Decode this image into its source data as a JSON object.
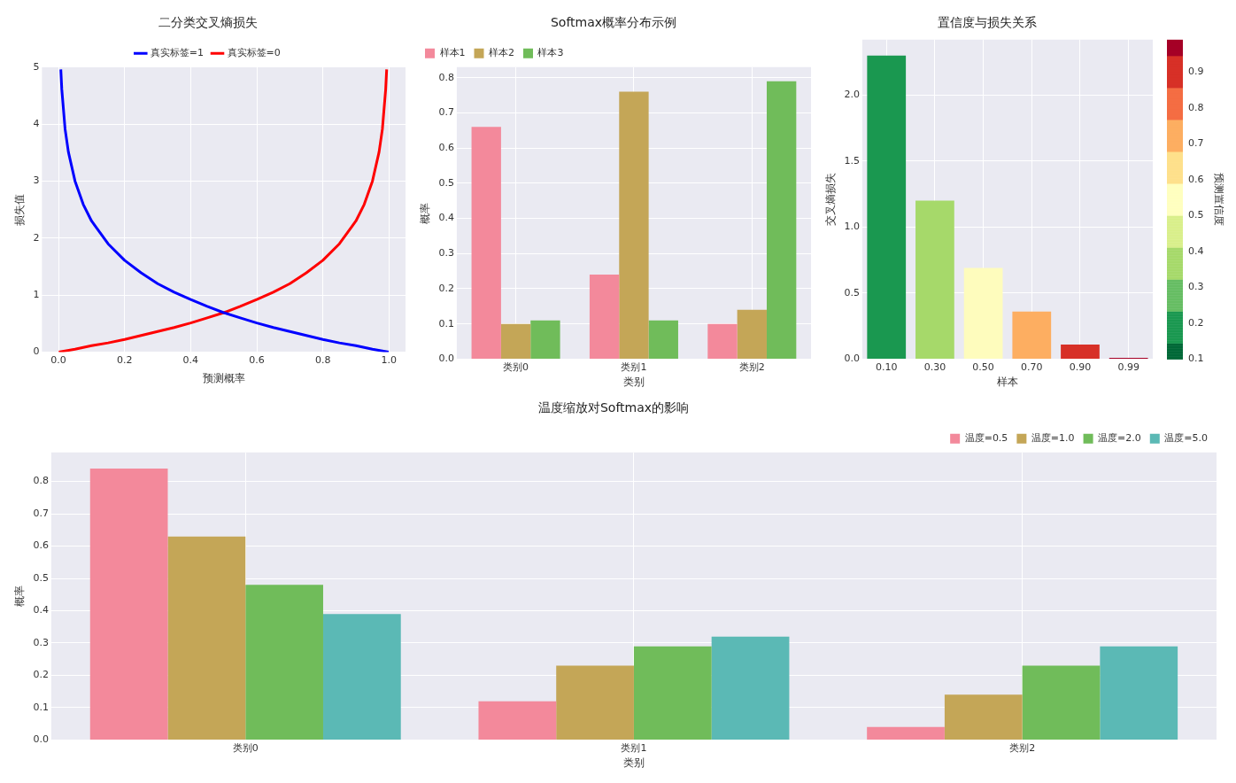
{
  "chart_data": [
    {
      "type": "line",
      "title": "二分类交叉熵损失",
      "xlabel": "预测概率",
      "ylabel": "损失值",
      "xlim": [
        -0.05,
        1.05
      ],
      "xticks": [
        {
          "value": 0,
          "label": "0.0"
        },
        {
          "value": 0.2,
          "label": "0.2"
        },
        {
          "value": 0.4,
          "label": "0.4"
        },
        {
          "value": 0.6,
          "label": "0.6"
        },
        {
          "value": 0.8,
          "label": "0.8"
        },
        {
          "value": 1,
          "label": "1.0"
        }
      ],
      "ylim": [
        0,
        5
      ],
      "yticks": [
        0,
        1,
        2,
        3,
        4,
        5
      ],
      "grid": true,
      "legend": "top",
      "series": [
        {
          "name": "真实标签=1",
          "color": "#0000ff",
          "x": [
            0.007,
            0.01,
            0.02,
            0.03,
            0.05,
            0.075,
            0.1,
            0.15,
            0.2,
            0.25,
            0.3,
            0.35,
            0.4,
            0.45,
            0.5,
            0.55,
            0.6,
            0.65,
            0.7,
            0.75,
            0.8,
            0.85,
            0.9,
            0.95,
            0.999
          ],
          "values": [
            4.96,
            4.61,
            3.91,
            3.51,
            3.0,
            2.59,
            2.3,
            1.9,
            1.61,
            1.39,
            1.2,
            1.05,
            0.92,
            0.8,
            0.69,
            0.6,
            0.51,
            0.43,
            0.36,
            0.29,
            0.22,
            0.16,
            0.11,
            0.05,
            0.0
          ]
        },
        {
          "name": "真实标签=0",
          "color": "#ff0000",
          "x": [
            0.001,
            0.05,
            0.1,
            0.15,
            0.2,
            0.25,
            0.3,
            0.35,
            0.4,
            0.45,
            0.5,
            0.55,
            0.6,
            0.65,
            0.7,
            0.75,
            0.8,
            0.85,
            0.9,
            0.925,
            0.95,
            0.97,
            0.98,
            0.99,
            0.993
          ],
          "values": [
            0.0,
            0.05,
            0.11,
            0.16,
            0.22,
            0.29,
            0.36,
            0.43,
            0.51,
            0.6,
            0.69,
            0.8,
            0.92,
            1.05,
            1.2,
            1.39,
            1.61,
            1.9,
            2.3,
            2.59,
            3.0,
            3.51,
            3.91,
            4.61,
            4.96
          ]
        }
      ]
    },
    {
      "type": "bar",
      "title": "Softmax概率分布示例",
      "xlabel": "类别",
      "ylabel": "概率",
      "categories": [
        "类别0",
        "类别1",
        "类别2"
      ],
      "ylim": [
        0,
        0.83
      ],
      "yticks": [
        {
          "value": 0,
          "label": "0.0"
        },
        0.1,
        0.2,
        0.3,
        0.4,
        0.5,
        0.6,
        0.7,
        0.8
      ],
      "grid": true,
      "legend": "top left",
      "series": [
        {
          "name": "样本1",
          "color": "#f3899b",
          "values": [
            0.66,
            0.24,
            0.1
          ]
        },
        {
          "name": "样本2",
          "color": "#c4a657",
          "values": [
            0.1,
            0.76,
            0.14
          ]
        },
        {
          "name": "样本3",
          "color": "#70bc5a",
          "values": [
            0.11,
            0.11,
            0.79
          ]
        }
      ]
    },
    {
      "type": "bar",
      "title": "置信度与损失关系",
      "xlabel": "样本",
      "ylabel": "交叉熵损失",
      "clabel": "预测置信度",
      "categories": [
        "0.10",
        "0.30",
        "0.50",
        "0.70",
        "0.90",
        "0.99"
      ],
      "values": [
        2.3,
        1.2,
        0.69,
        0.36,
        0.11,
        0.01
      ],
      "colors": [
        "#1a9850",
        "#a6d96a",
        "#fefcbd",
        "#fdae61",
        "#d73027",
        "#a50026"
      ],
      "ylim": [
        0,
        2.42
      ],
      "yticks": [
        {
          "value": 0,
          "label": "0.0"
        },
        0.5,
        {
          "value": 1,
          "label": "1.0"
        },
        1.5,
        {
          "value": 2,
          "label": "2.0"
        }
      ],
      "clim": [
        0.1,
        0.99
      ],
      "cticks": [
        0.1,
        0.2,
        0.3,
        0.4,
        0.5,
        0.6,
        0.7,
        0.8,
        0.9
      ],
      "grid": true
    },
    {
      "type": "bar",
      "title": "温度缩放对Softmax的影响",
      "xlabel": "类别",
      "ylabel": "概率",
      "categories": [
        "类别0",
        "类别1",
        "类别2"
      ],
      "ylim": [
        0,
        0.89
      ],
      "yticks": [
        {
          "value": 0,
          "label": "0.0"
        },
        0.1,
        0.2,
        0.3,
        0.4,
        0.5,
        0.6,
        0.7,
        0.8
      ],
      "grid": true,
      "legend": "top right",
      "series": [
        {
          "name": "温度=0.5",
          "color": "#f3899b",
          "values": [
            0.84,
            0.12,
            0.04
          ]
        },
        {
          "name": "温度=1.0",
          "color": "#c4a657",
          "values": [
            0.63,
            0.23,
            0.14
          ]
        },
        {
          "name": "温度=2.0",
          "color": "#70bc5a",
          "values": [
            0.48,
            0.29,
            0.23
          ]
        },
        {
          "name": "温度=5.0",
          "color": "#5bb9b5",
          "values": [
            0.39,
            0.32,
            0.29
          ]
        }
      ]
    }
  ]
}
